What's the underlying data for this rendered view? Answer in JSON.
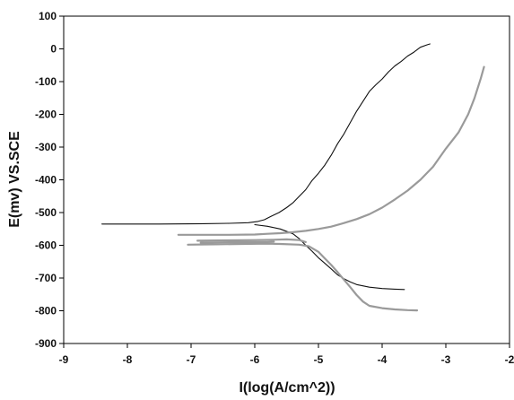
{
  "chart_data": {
    "type": "line",
    "title": "",
    "xlabel": "I(log(A/cm^2))",
    "ylabel": "E(mv) VS.SCE",
    "xlim": [
      -9,
      -2
    ],
    "ylim": [
      -900,
      100
    ],
    "x_ticks": [
      -9,
      -8,
      -7,
      -6,
      -5,
      -4,
      -3,
      -2
    ],
    "y_ticks": [
      100,
      0,
      -100,
      -200,
      -300,
      -400,
      -500,
      -600,
      -700,
      -800,
      -900
    ],
    "grid": false,
    "legend": "none",
    "colors": {
      "frame": "#000000",
      "series_dark": "#111111",
      "series_gray": "#9a9a9a"
    },
    "series": [
      {
        "style": "dark",
        "points": [
          [
            -8.4,
            -535
          ],
          [
            -7.5,
            -535
          ],
          [
            -6.8,
            -534
          ],
          [
            -6.4,
            -533
          ],
          [
            -6.1,
            -531
          ],
          [
            -5.95,
            -527
          ],
          [
            -5.85,
            -522
          ],
          [
            -5.75,
            -512
          ],
          [
            -5.62,
            -500
          ],
          [
            -5.5,
            -485
          ],
          [
            -5.4,
            -470
          ],
          [
            -5.3,
            -450
          ],
          [
            -5.2,
            -430
          ],
          [
            -5.1,
            -402
          ],
          [
            -5.0,
            -380
          ],
          [
            -4.9,
            -355
          ],
          [
            -4.8,
            -325
          ],
          [
            -4.7,
            -290
          ],
          [
            -4.6,
            -260
          ],
          [
            -4.5,
            -225
          ],
          [
            -4.4,
            -190
          ],
          [
            -4.3,
            -160
          ],
          [
            -4.2,
            -130
          ],
          [
            -4.1,
            -110
          ],
          [
            -4.0,
            -92
          ],
          [
            -3.9,
            -70
          ],
          [
            -3.8,
            -52
          ],
          [
            -3.7,
            -38
          ],
          [
            -3.6,
            -22
          ],
          [
            -3.5,
            -10
          ],
          [
            -3.4,
            5
          ],
          [
            -3.3,
            12
          ],
          [
            -3.25,
            15
          ]
        ]
      },
      {
        "style": "dark",
        "points": [
          [
            -6.0,
            -537
          ],
          [
            -5.8,
            -542
          ],
          [
            -5.6,
            -550
          ],
          [
            -5.4,
            -565
          ],
          [
            -5.3,
            -580
          ],
          [
            -5.2,
            -600
          ],
          [
            -5.1,
            -618
          ],
          [
            -5.0,
            -638
          ],
          [
            -4.9,
            -655
          ],
          [
            -4.8,
            -672
          ],
          [
            -4.7,
            -690
          ],
          [
            -4.6,
            -702
          ],
          [
            -4.5,
            -712
          ],
          [
            -4.4,
            -720
          ],
          [
            -4.2,
            -728
          ],
          [
            -4.0,
            -732
          ],
          [
            -3.8,
            -734
          ],
          [
            -3.65,
            -735
          ]
        ]
      },
      {
        "style": "gray",
        "points": [
          [
            -7.2,
            -568
          ],
          [
            -6.8,
            -568
          ],
          [
            -6.4,
            -568
          ],
          [
            -6.0,
            -567
          ],
          [
            -5.8,
            -565
          ],
          [
            -5.6,
            -563
          ],
          [
            -5.4,
            -560
          ],
          [
            -5.2,
            -556
          ],
          [
            -5.0,
            -550
          ],
          [
            -4.8,
            -543
          ],
          [
            -4.6,
            -532
          ],
          [
            -4.4,
            -520
          ],
          [
            -4.2,
            -505
          ],
          [
            -4.0,
            -485
          ],
          [
            -3.8,
            -460
          ],
          [
            -3.6,
            -433
          ],
          [
            -3.4,
            -400
          ],
          [
            -3.2,
            -360
          ],
          [
            -3.0,
            -305
          ],
          [
            -2.8,
            -255
          ],
          [
            -2.65,
            -200
          ],
          [
            -2.55,
            -150
          ],
          [
            -2.45,
            -90
          ],
          [
            -2.4,
            -55
          ]
        ]
      },
      {
        "style": "gray",
        "points": [
          [
            -7.05,
            -598
          ],
          [
            -6.6,
            -597
          ],
          [
            -6.2,
            -596
          ],
          [
            -5.8,
            -595
          ],
          [
            -5.6,
            -596
          ],
          [
            -5.3,
            -598
          ],
          [
            -5.15,
            -603
          ],
          [
            -5.0,
            -620
          ],
          [
            -4.9,
            -640
          ],
          [
            -4.8,
            -660
          ],
          [
            -4.7,
            -682
          ],
          [
            -4.6,
            -705
          ],
          [
            -4.5,
            -728
          ],
          [
            -4.4,
            -752
          ],
          [
            -4.3,
            -772
          ],
          [
            -4.2,
            -785
          ],
          [
            -4.0,
            -792
          ],
          [
            -3.8,
            -796
          ],
          [
            -3.6,
            -798
          ],
          [
            -3.45,
            -799
          ]
        ]
      },
      {
        "style": "gray",
        "points": [
          [
            -6.85,
            -592
          ],
          [
            -6.5,
            -591
          ],
          [
            -6.1,
            -590
          ],
          [
            -5.8,
            -590
          ],
          [
            -5.7,
            -589
          ]
        ]
      },
      {
        "style": "gray",
        "points": [
          [
            -6.9,
            -586
          ],
          [
            -6.4,
            -585
          ],
          [
            -6.0,
            -584
          ],
          [
            -5.7,
            -583
          ],
          [
            -5.5,
            -582
          ],
          [
            -5.3,
            -584
          ],
          [
            -5.2,
            -590
          ]
        ]
      }
    ]
  }
}
